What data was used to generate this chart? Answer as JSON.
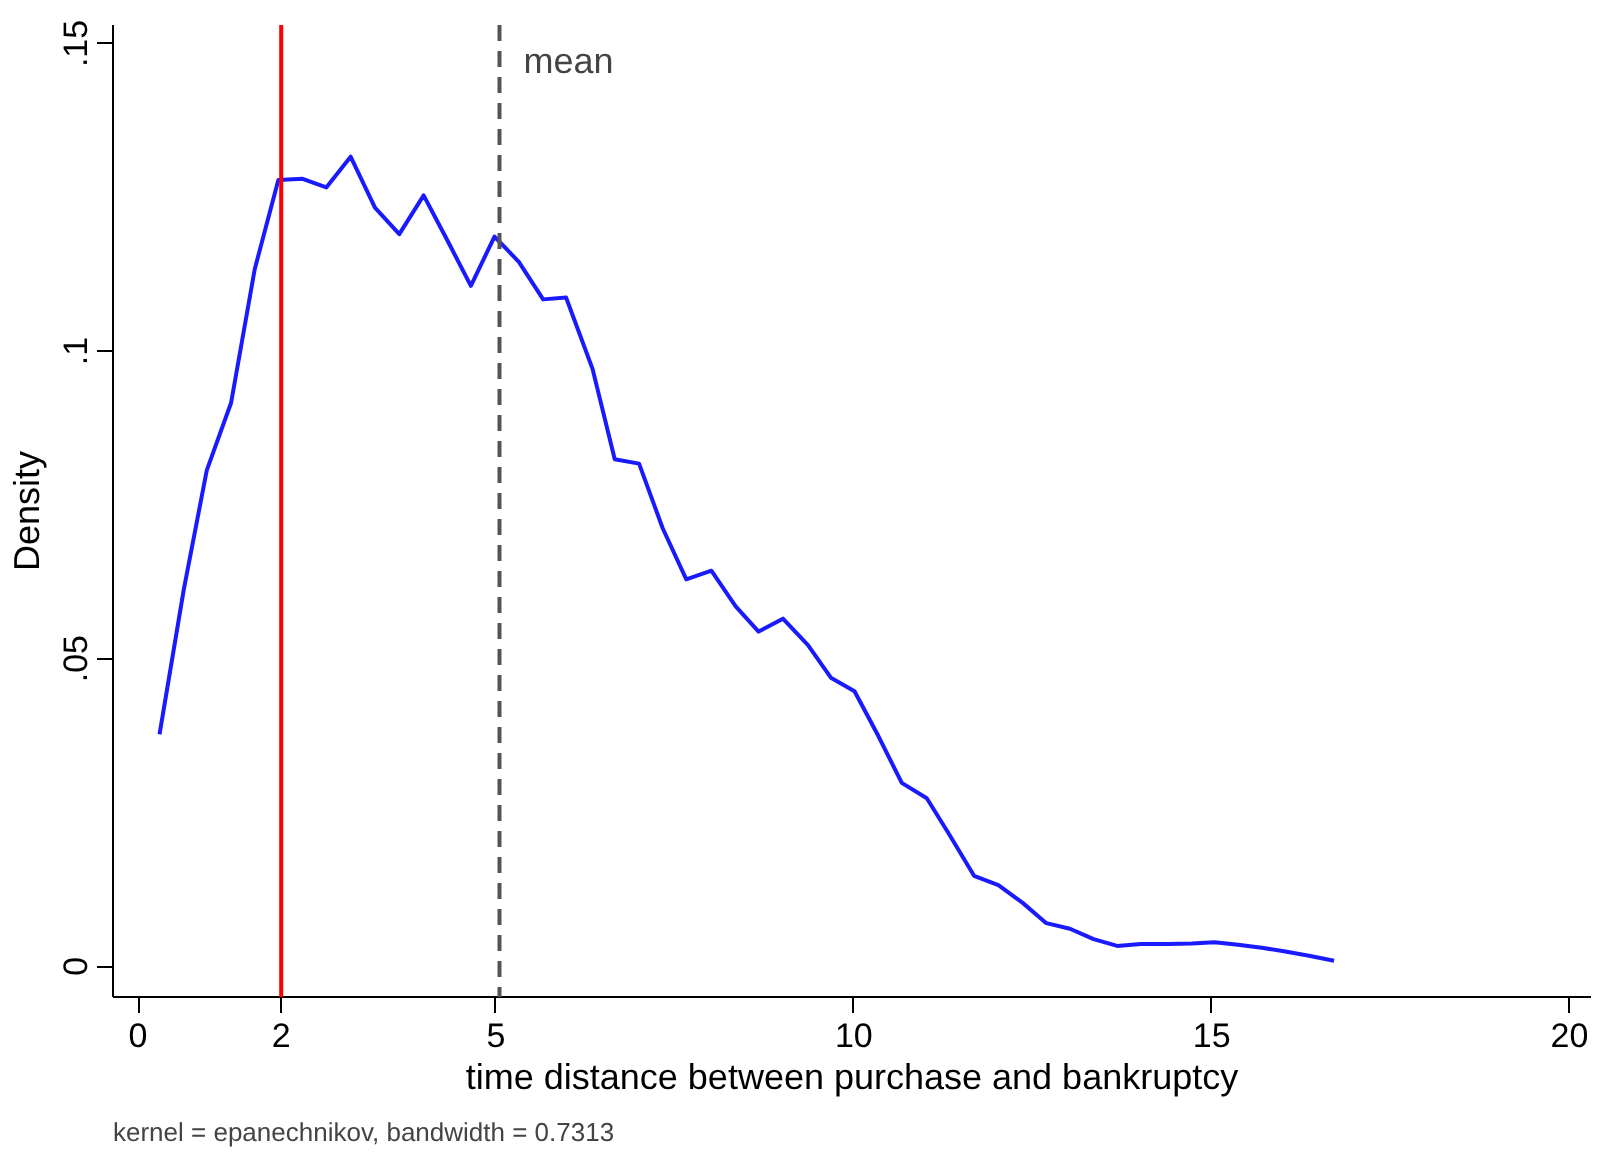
{
  "chart_data": {
    "type": "line",
    "xlabel": "time distance between purchase and bankruptcy",
    "ylabel": "Density",
    "annotations": [
      "kernel = epanechnikov, bandwidth = 0.7313"
    ],
    "x": [
      0.3,
      0.64,
      0.96,
      1.3,
      1.63,
      1.96,
      2.3,
      2.63,
      2.97,
      3.31,
      3.65,
      3.99,
      4.33,
      4.65,
      4.98,
      5.32,
      5.66,
      5.98,
      6.35,
      6.66,
      7.0,
      7.33,
      7.66,
      8.01,
      8.35,
      8.67,
      9.01,
      9.36,
      9.68,
      10.01,
      10.34,
      10.67,
      11.02,
      11.33,
      11.68,
      12.02,
      12.36,
      12.69,
      13.02,
      13.35,
      13.68,
      14.01,
      14.39,
      14.72,
      15.04,
      15.37,
      15.7,
      16.03,
      16.36,
      16.71
    ],
    "series": [
      {
        "color": "#1a1aff",
        "values": [
          0.0377,
          0.0613,
          0.0806,
          0.0916,
          0.1133,
          0.1278,
          0.128,
          0.1266,
          0.1316,
          0.1233,
          0.119,
          0.1253,
          0.1178,
          0.1106,
          0.1186,
          0.1145,
          0.1084,
          0.1087,
          0.0971,
          0.0824,
          0.0817,
          0.0712,
          0.0629,
          0.0643,
          0.0585,
          0.0544,
          0.0565,
          0.0522,
          0.0469,
          0.0447,
          0.0375,
          0.0298,
          0.0273,
          0.0215,
          0.0147,
          0.0132,
          0.0103,
          0.007,
          0.0061,
          0.0044,
          0.0033,
          0.0036,
          0.0036,
          0.0037,
          0.0039,
          0.0035,
          0.003,
          0.0024,
          0.0017,
          0.0009
        ]
      }
    ],
    "xlim": [
      -0.35,
      20.3
    ],
    "ylim": [
      -0.005,
      0.153
    ],
    "xticks": [
      0,
      2,
      5,
      10,
      15,
      20
    ],
    "yticks": [
      0,
      {
        "value": 0.05,
        "label": ".05"
      },
      {
        "value": 0.1,
        "label": ".1"
      },
      {
        "value": 0.15,
        "label": ".15"
      }
    ],
    "ref_lines": [
      {
        "axis": "x",
        "value": 2,
        "label": null,
        "color": "#ff0000",
        "line_style": "solid"
      },
      {
        "axis": "x",
        "value": 5.05,
        "label": "mean",
        "color": "#555555",
        "line_style": "dashed"
      }
    ],
    "grid": false,
    "marker": "none",
    "line_style": "solid"
  }
}
